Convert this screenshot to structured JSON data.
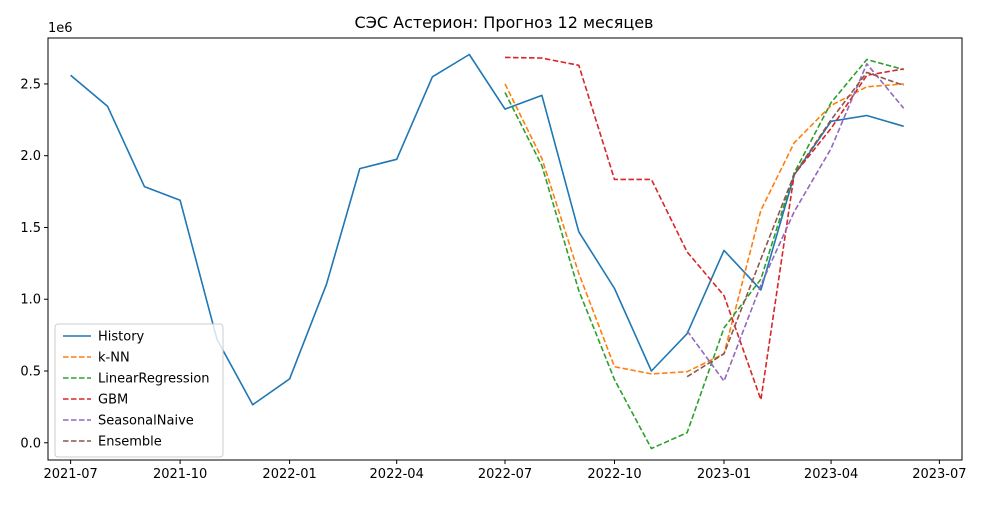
{
  "chart_data": {
    "type": "line",
    "title": "СЭС Астерион: Прогноз 12 месяцев",
    "xlabel": "",
    "ylabel": "",
    "y_offset_label": "1e6",
    "ylim": [
      -0.12,
      2.82
    ],
    "y_ticks": [
      0.0,
      0.5,
      1.0,
      1.5,
      2.0,
      2.5
    ],
    "y_tick_labels": [
      "0.0",
      "0.5",
      "1.0",
      "1.5",
      "2.0",
      "2.5"
    ],
    "x_ticks": [
      "2021-07",
      "2021-10",
      "2022-01",
      "2022-04",
      "2022-07",
      "2022-10",
      "2023-01",
      "2023-04",
      "2023-07"
    ],
    "xlim": [
      "2021-06-12",
      "2023-07-20"
    ],
    "legend_position": "lower-left",
    "grid": false,
    "series": [
      {
        "name": "History",
        "color": "#1f77b4",
        "dashed": false,
        "dates": [
          "2021-07",
          "2021-08",
          "2021-09",
          "2021-10",
          "2021-11",
          "2021-12",
          "2022-01",
          "2022-02",
          "2022-03",
          "2022-04",
          "2022-05",
          "2022-06",
          "2022-07",
          "2022-08",
          "2022-09",
          "2022-10",
          "2022-11",
          "2022-12",
          "2023-01",
          "2023-02",
          "2023-03",
          "2023-04",
          "2023-05",
          "2023-06"
        ],
        "values": [
          2.56,
          2.345,
          1.785,
          1.69,
          0.72,
          0.265,
          0.445,
          1.105,
          1.91,
          1.975,
          2.55,
          2.705,
          2.325,
          2.42,
          1.47,
          1.075,
          0.5,
          0.76,
          1.34,
          1.065,
          1.865,
          2.24,
          2.28,
          2.205
        ]
      },
      {
        "name": "k-NN",
        "color": "#ff7f0e",
        "dashed": true,
        "dates": [
          "2022-07",
          "2022-08",
          "2022-09",
          "2022-10",
          "2022-11",
          "2022-12",
          "2023-01",
          "2023-02",
          "2023-03",
          "2023-04",
          "2023-05",
          "2023-06"
        ],
        "values": [
          2.5,
          1.98,
          1.18,
          0.53,
          0.48,
          0.495,
          0.62,
          1.62,
          2.09,
          2.35,
          2.48,
          2.5
        ]
      },
      {
        "name": "LinearRegression",
        "color": "#2ca02c",
        "dashed": true,
        "dates": [
          "2022-07",
          "2022-08",
          "2022-09",
          "2022-10",
          "2022-11",
          "2022-12",
          "2023-01",
          "2023-02",
          "2023-03",
          "2023-04",
          "2023-05",
          "2023-06"
        ],
        "values": [
          2.44,
          1.93,
          1.06,
          0.44,
          -0.04,
          0.07,
          0.8,
          1.14,
          1.88,
          2.37,
          2.67,
          2.6
        ]
      },
      {
        "name": "GBM",
        "color": "#d62728",
        "dashed": true,
        "dates": [
          "2022-07",
          "2022-08",
          "2022-09",
          "2022-10",
          "2022-11",
          "2022-12",
          "2023-01",
          "2023-02",
          "2023-03",
          "2023-04",
          "2023-05",
          "2023-06"
        ],
        "values": [
          2.685,
          2.68,
          2.63,
          1.835,
          1.835,
          1.33,
          1.025,
          0.3,
          1.87,
          2.19,
          2.56,
          2.605
        ]
      },
      {
        "name": "SeasonalNaive",
        "color": "#9467bd",
        "dashed": true,
        "dates": [
          "2022-12",
          "2023-01",
          "2023-02",
          "2023-03",
          "2023-04",
          "2023-05",
          "2023-06"
        ],
        "values": [
          0.78,
          0.43,
          1.1,
          1.61,
          2.05,
          2.64,
          2.33
        ]
      },
      {
        "name": "Ensemble",
        "color": "#8c564b",
        "dashed": true,
        "dates": [
          "2022-12",
          "2023-01",
          "2023-02",
          "2023-03",
          "2023-04",
          "2023-05",
          "2023-06"
        ],
        "values": [
          0.46,
          0.62,
          1.28,
          1.87,
          2.25,
          2.58,
          2.49
        ]
      }
    ]
  }
}
